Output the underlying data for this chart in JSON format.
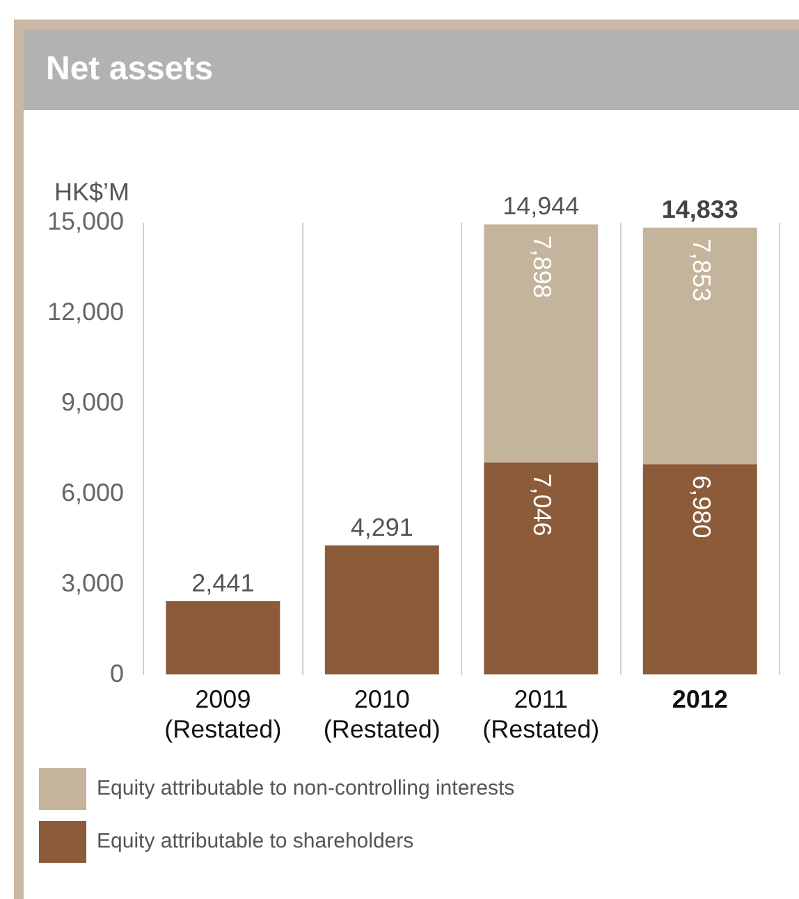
{
  "chart_data": {
    "type": "bar",
    "title": "Net assets",
    "ylabel": "HK$’M",
    "stacked": true,
    "categories": [
      "2009\n(Restated)",
      "2010\n(Restated)",
      "2011\n(Restated)",
      "2012"
    ],
    "series": [
      {
        "name": "Equity attributable to shareholders",
        "color": "#8b5b3a",
        "values": [
          2441,
          4291,
          7046,
          6980
        ],
        "value_labels": [
          null,
          null,
          "7,046",
          "6,980"
        ]
      },
      {
        "name": "Equity attributable to non-controlling interests",
        "color": "#c4b49b",
        "values": [
          null,
          null,
          7898,
          7853
        ],
        "value_labels": [
          null,
          null,
          "7,898",
          "7,853"
        ]
      }
    ],
    "totals": [
      "2,441",
      "4,291",
      "14,944",
      "14,833"
    ],
    "ylim": [
      0,
      15000
    ],
    "yticks": [
      {
        "value": 0,
        "label": "0"
      },
      {
        "value": 3000,
        "label": "3,000"
      },
      {
        "value": 6000,
        "label": "6,000"
      },
      {
        "value": 9000,
        "label": "9,000"
      },
      {
        "value": 12000,
        "label": "12,000"
      },
      {
        "value": 15000,
        "label": "15,000"
      }
    ],
    "grid": "x",
    "legend": "bottom"
  }
}
